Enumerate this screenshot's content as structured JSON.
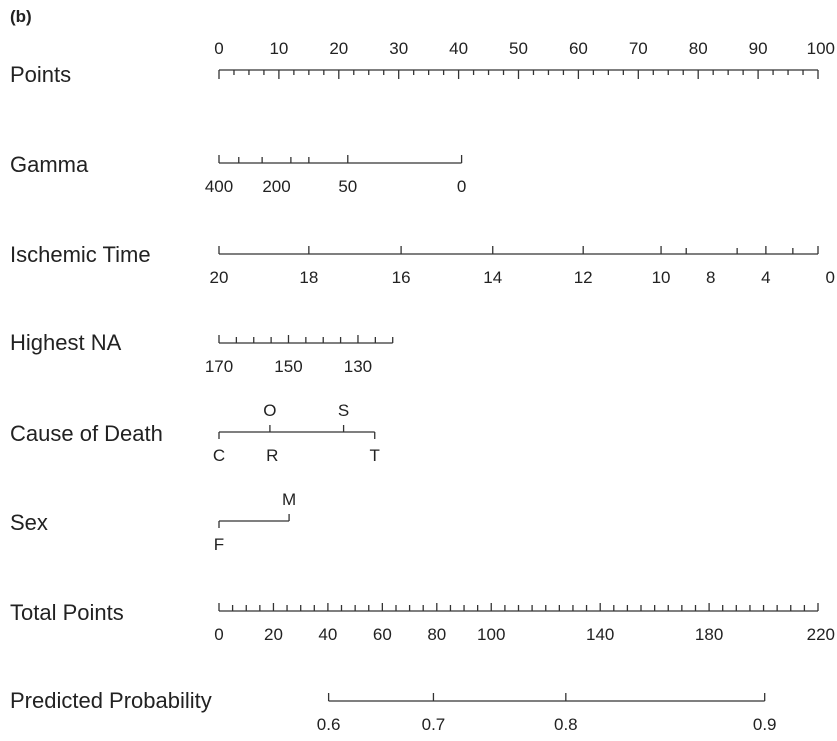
{
  "chart_data": {
    "type": "nomogram",
    "panel_label": "(b)",
    "rows": [
      {
        "name": "Points",
        "points_range": [
          0,
          100
        ],
        "labels_position": "above",
        "minor_ticks": [
          0,
          2.5,
          5,
          7.5,
          10,
          12.5,
          15,
          17.5,
          20,
          22.5,
          25,
          27.5,
          30,
          32.5,
          35,
          37.5,
          40,
          42.5,
          45,
          47.5,
          50,
          52.5,
          55,
          57.5,
          60,
          62.5,
          65,
          67.5,
          70,
          72.5,
          75,
          77.5,
          80,
          82.5,
          85,
          87.5,
          90,
          92.5,
          95,
          97.5,
          100
        ],
        "labels": [
          {
            "text": "0",
            "points": 0
          },
          {
            "text": "10",
            "points": 10
          },
          {
            "text": "20",
            "points": 20
          },
          {
            "text": "30",
            "points": 30
          },
          {
            "text": "40",
            "points": 40
          },
          {
            "text": "50",
            "points": 50
          },
          {
            "text": "60",
            "points": 60
          },
          {
            "text": "70",
            "points": 70
          },
          {
            "text": "80",
            "points": 80
          },
          {
            "text": "90",
            "points": 90
          },
          {
            "text": "100",
            "points": 100
          }
        ]
      },
      {
        "name": "Gamma",
        "points_range": [
          0,
          40.5
        ],
        "labels_position": "below",
        "minor_ticks": [
          0,
          3.3,
          7.2,
          12,
          15,
          21.5,
          40.5
        ],
        "labels": [
          {
            "text": "400",
            "points": 0
          },
          {
            "text": "200",
            "points": 9.6
          },
          {
            "text": "50",
            "points": 21.5
          },
          {
            "text": "0",
            "points": 40.5
          }
        ]
      },
      {
        "name": "Ischemic Time",
        "points_range": [
          0,
          100
        ],
        "labels_position": "below",
        "minor_ticks": [
          0,
          15,
          30.4,
          45.7,
          60.8,
          73.8,
          78,
          86.5,
          91.3,
          95.8,
          100
        ],
        "labels": [
          {
            "text": "20",
            "points": 0
          },
          {
            "text": "18",
            "points": 15
          },
          {
            "text": "16",
            "points": 30.4
          },
          {
            "text": "14",
            "points": 45.7
          },
          {
            "text": "12",
            "points": 60.8
          },
          {
            "text": "10",
            "points": 73.8
          },
          {
            "text": "8",
            "points": 82.1
          },
          {
            "text": "4",
            "points": 91.3
          },
          {
            "text": "0",
            "points": 100
          }
        ]
      },
      {
        "name": "Highest NA",
        "points_range": [
          0,
          29
        ],
        "labels_position": "below",
        "minor_ticks": [
          0,
          2.9,
          5.8,
          8.7,
          11.6,
          14.5,
          17.4,
          20.3,
          23.2,
          26.1,
          29
        ],
        "labels": [
          {
            "text": "170",
            "points": 0
          },
          {
            "text": "150",
            "points": 11.6
          },
          {
            "text": "130",
            "points": 23.2
          }
        ]
      },
      {
        "name": "Cause of Death",
        "points_range": [
          0,
          26
        ],
        "labels_position": "mixed",
        "minor_ticks": [
          0,
          8.5,
          20.8,
          26
        ],
        "labels": [
          {
            "text": "C",
            "points": 0,
            "side": "below"
          },
          {
            "text": "O",
            "points": 8.5,
            "side": "above"
          },
          {
            "text": "R",
            "points": 8.9,
            "side": "below"
          },
          {
            "text": "S",
            "points": 20.8,
            "side": "above"
          },
          {
            "text": "T",
            "points": 26,
            "side": "below"
          }
        ]
      },
      {
        "name": "Sex",
        "points_range": [
          0,
          11.7
        ],
        "labels_position": "mixed",
        "minor_ticks": [
          0,
          11.7
        ],
        "labels": [
          {
            "text": "M",
            "points": 11.7,
            "side": "above"
          },
          {
            "text": "F",
            "points": 0,
            "side": "below"
          }
        ]
      },
      {
        "name": "Total Points",
        "points_range": [
          0,
          100
        ],
        "labels_position": "below",
        "minor_ticks": [
          0,
          2.27,
          4.55,
          6.82,
          9.09,
          11.36,
          13.64,
          15.91,
          18.18,
          20.45,
          22.73,
          25,
          27.27,
          29.55,
          31.82,
          34.09,
          36.36,
          38.64,
          40.91,
          43.18,
          45.45,
          47.73,
          50,
          52.27,
          54.55,
          56.82,
          59.09,
          61.36,
          63.64,
          65.91,
          68.18,
          70.45,
          72.73,
          75,
          77.27,
          79.55,
          81.82,
          84.09,
          86.36,
          88.64,
          90.91,
          93.18,
          95.45,
          97.73,
          100
        ],
        "labels": [
          {
            "text": "0",
            "points": 0
          },
          {
            "text": "20",
            "points": 9.09
          },
          {
            "text": "40",
            "points": 18.18
          },
          {
            "text": "60",
            "points": 27.27
          },
          {
            "text": "80",
            "points": 36.36
          },
          {
            "text": "100",
            "points": 45.45
          },
          {
            "text": "140",
            "points": 63.64
          },
          {
            "text": "180",
            "points": 81.82
          },
          {
            "text": "220",
            "points": 100
          }
        ]
      },
      {
        "name": "Predicted Probability",
        "points_range": [
          18.3,
          91.1
        ],
        "labels_position": "below",
        "minor_ticks": [
          18.3,
          35.8,
          57.9,
          91.1
        ],
        "labels": [
          {
            "text": "0.6",
            "points": 18.3
          },
          {
            "text": "0.7",
            "points": 35.8
          },
          {
            "text": "0.8",
            "points": 57.9
          },
          {
            "text": "0.9",
            "points": 91.1
          }
        ]
      }
    ]
  }
}
